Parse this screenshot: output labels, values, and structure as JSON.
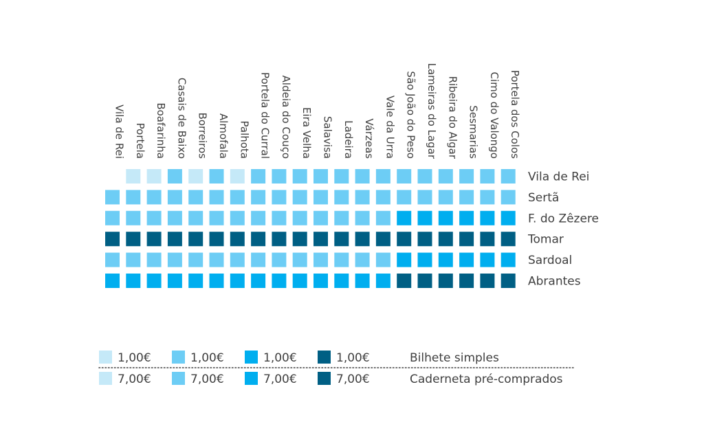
{
  "chart_data": {
    "type": "heatmap",
    "columns": [
      "Vila de Rei",
      "Portela",
      "Boafarinha",
      "Casais de Baixo",
      "Borreiros",
      "Almofala",
      "Palhota",
      "Portela do Curral",
      "Aldeia do Couço",
      "Eira Velha",
      "Salavisa",
      "Ladeira",
      "Várzeas",
      "Vale da Urra",
      "São João do Peso",
      "Lameiras do Lagar",
      "Ribeira do Algar",
      "Sesmarias",
      "Cimo do Valongo",
      "Portela dos Colos"
    ],
    "rows": [
      "Vila de Rei",
      "Sertã",
      "F. do Zêzere",
      "Tomar",
      "Sardoal",
      "Abrantes"
    ],
    "levels": [
      [
        null,
        0,
        0,
        1,
        0,
        1,
        0,
        1,
        1,
        1,
        1,
        1,
        1,
        1,
        1,
        1,
        1,
        1,
        1,
        1
      ],
      [
        1,
        1,
        1,
        1,
        1,
        1,
        1,
        1,
        1,
        1,
        1,
        1,
        1,
        1,
        1,
        1,
        1,
        1,
        1,
        1
      ],
      [
        1,
        1,
        1,
        1,
        1,
        1,
        1,
        1,
        1,
        1,
        1,
        1,
        1,
        1,
        2,
        2,
        2,
        2,
        2,
        2
      ],
      [
        3,
        3,
        3,
        3,
        3,
        3,
        3,
        3,
        3,
        3,
        3,
        3,
        3,
        3,
        3,
        3,
        3,
        3,
        3,
        3
      ],
      [
        1,
        1,
        1,
        1,
        1,
        1,
        1,
        1,
        1,
        1,
        1,
        1,
        1,
        1,
        2,
        2,
        2,
        2,
        2,
        2
      ],
      [
        2,
        2,
        2,
        2,
        2,
        2,
        2,
        2,
        2,
        2,
        2,
        2,
        2,
        2,
        3,
        3,
        3,
        3,
        3,
        3
      ]
    ],
    "colors": [
      "#c5e9f8",
      "#6dcdf5",
      "#00aeef",
      "#005f84"
    ],
    "legend": {
      "rows": [
        {
          "values": [
            "1,00€",
            "1,00€",
            "1,00€",
            "1,00€"
          ],
          "label": "Bilhete simples"
        },
        {
          "values": [
            "7,00€",
            "7,00€",
            "7,00€",
            "7,00€"
          ],
          "label": "Caderneta pré-comprados"
        }
      ]
    },
    "divider_color": "#3f3f3f"
  }
}
